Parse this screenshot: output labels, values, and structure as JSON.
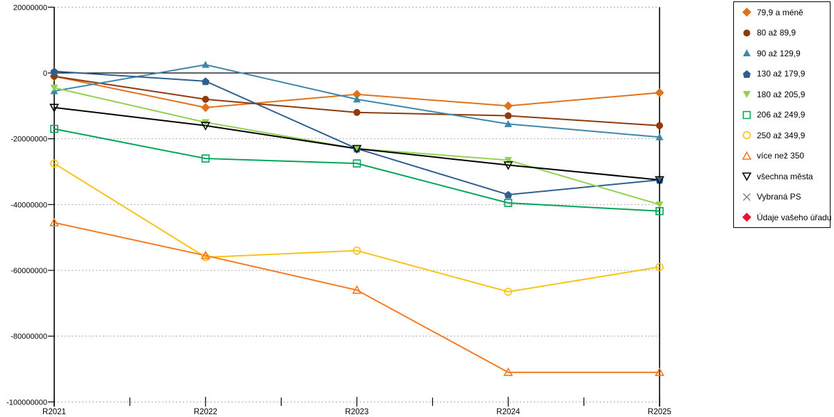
{
  "chart_data": {
    "type": "line",
    "categories": [
      "R2021",
      "R2022",
      "R2023",
      "R2024",
      "R2025"
    ],
    "ylim": [
      -100000000,
      20000000
    ],
    "ytick_step": 20000000,
    "ytick_labels": [
      "20000000",
      "0",
      "-20000000",
      "-40000000",
      "-60000000",
      "-80000000",
      "-100000000"
    ],
    "xlabel": "",
    "ylabel": "",
    "grid": "horizontal-dotted",
    "legend_position": "right",
    "series": [
      {
        "name": "79,9 a méně",
        "color": "#E2711C",
        "marker": "diamond",
        "open": false,
        "values": [
          -1000000,
          -10500000,
          -6500000,
          -10000000,
          -6000000
        ]
      },
      {
        "name": "80 až 89,9",
        "color": "#8E3A0E",
        "marker": "circle",
        "open": false,
        "values": [
          -1000000,
          -8000000,
          -12000000,
          -13000000,
          -16000000
        ]
      },
      {
        "name": "90 až 129,9",
        "color": "#3E87A8",
        "marker": "triangle-up",
        "open": false,
        "values": [
          -5500000,
          2500000,
          -8000000,
          -15500000,
          -19500000
        ]
      },
      {
        "name": "130 až 179,9",
        "color": "#2E5F8F",
        "marker": "pentagon",
        "open": false,
        "values": [
          500000,
          -2500000,
          -23000000,
          -37000000,
          -32500000
        ]
      },
      {
        "name": "180 až 205,9",
        "color": "#92D050",
        "marker": "triangle-down",
        "open": false,
        "values": [
          -4500000,
          -15000000,
          -23000000,
          -26500000,
          -40000000
        ]
      },
      {
        "name": "206 až 249,9",
        "color": "#00A45A",
        "marker": "square",
        "open": true,
        "values": [
          -17000000,
          -26000000,
          -27500000,
          -39500000,
          -42000000
        ]
      },
      {
        "name": "250 až 349,9",
        "color": "#F9C316",
        "marker": "circle",
        "open": true,
        "values": [
          -27500000,
          -56000000,
          -54000000,
          -66500000,
          -59000000
        ]
      },
      {
        "name": "více než 350",
        "color": "#F8791D",
        "marker": "triangle-up",
        "open": true,
        "values": [
          -45500000,
          -55500000,
          -66000000,
          -91000000,
          -91000000
        ]
      },
      {
        "name": "všechna města",
        "color": "#000000",
        "marker": "triangle-down",
        "open": true,
        "values": [
          -10500000,
          -16000000,
          -23000000,
          -28000000,
          -32500000
        ]
      },
      {
        "name": "Vybraná PS",
        "color": "#8C8C8C",
        "marker": "x",
        "open": true,
        "values": null
      },
      {
        "name": "Údaje vašeho úřadu",
        "color": "#E8112D",
        "marker": "diamond",
        "open": false,
        "values": null
      }
    ]
  },
  "style": {
    "grid_color": "#AAAAAA",
    "axis_color": "#000000",
    "label_color": "#000000"
  }
}
